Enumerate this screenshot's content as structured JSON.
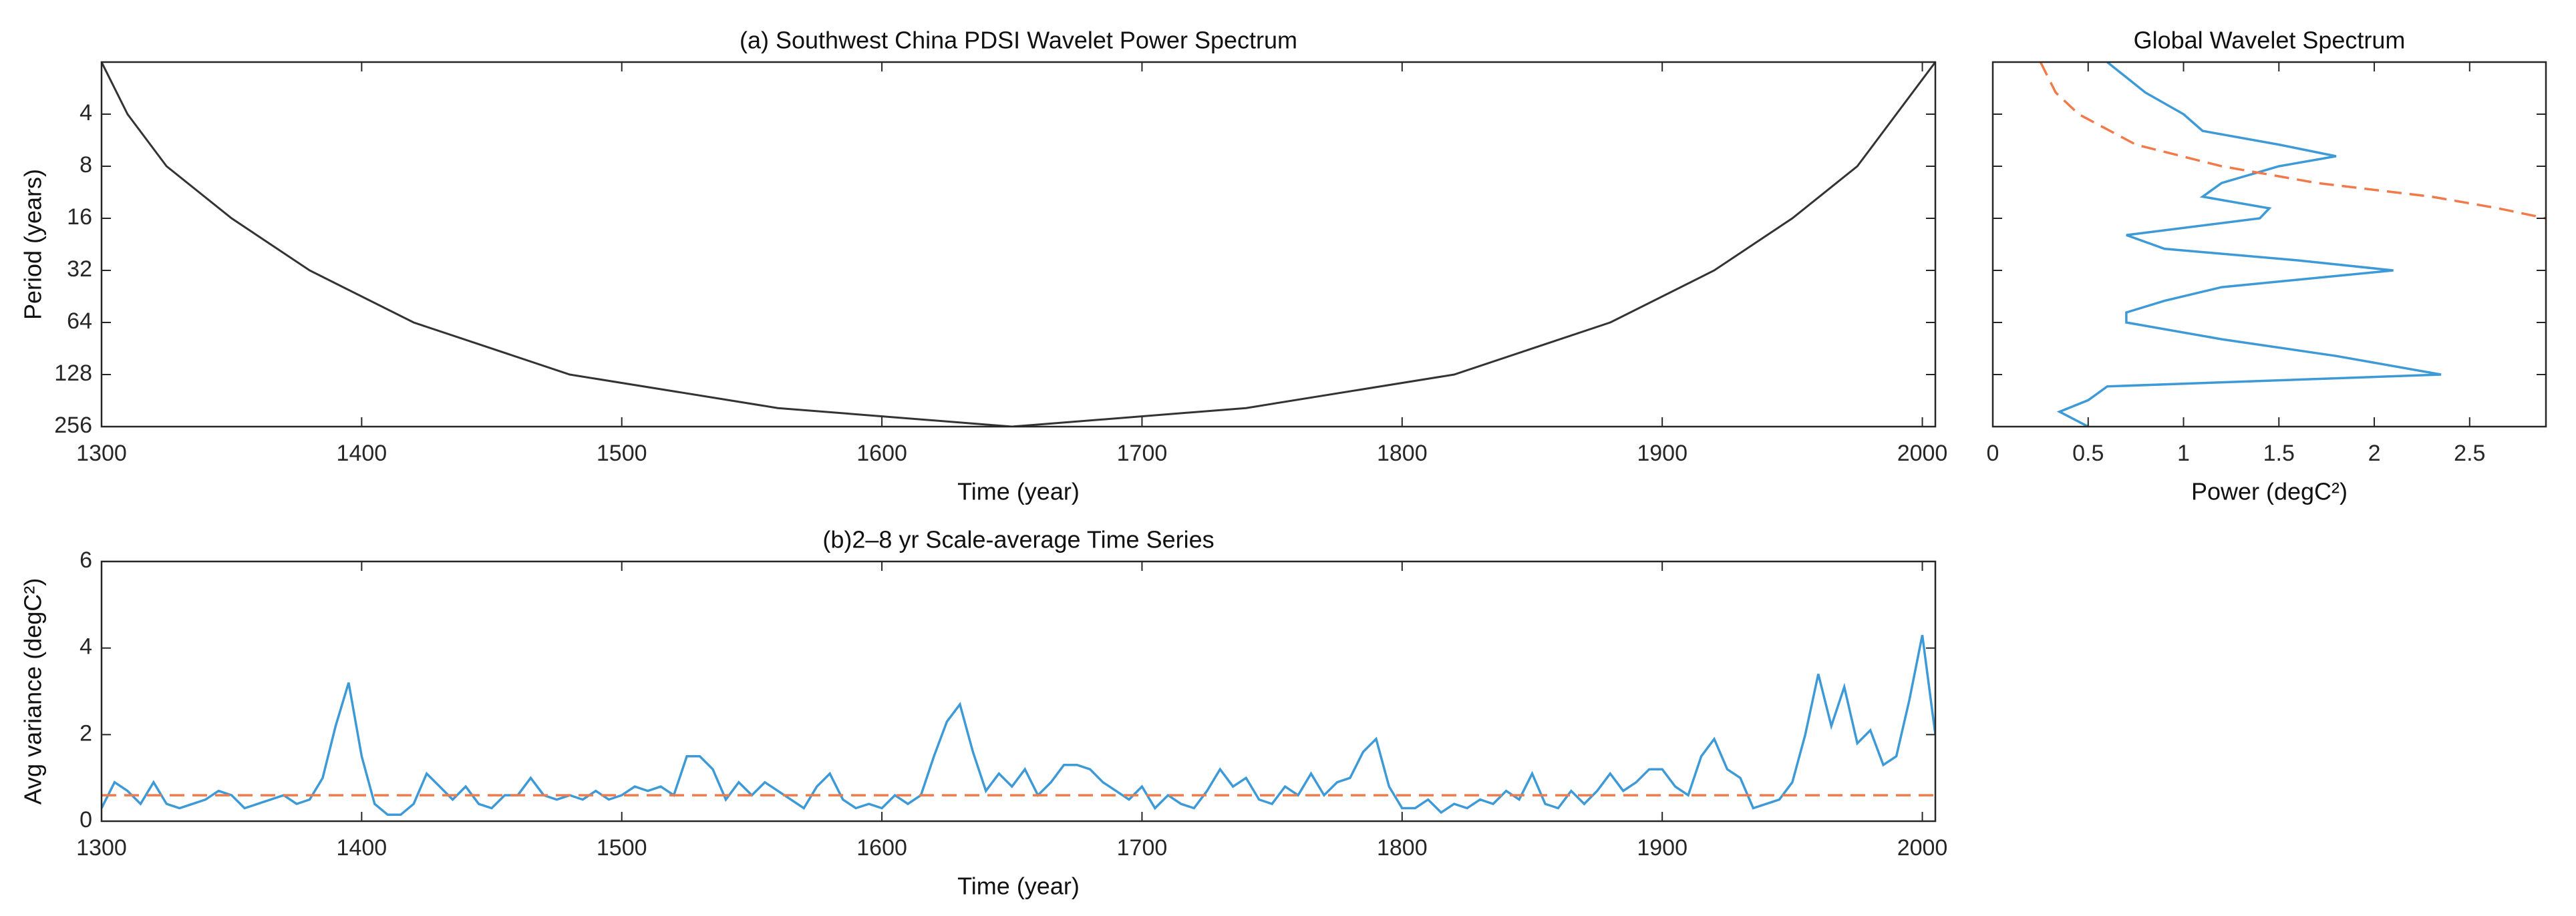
{
  "chart_data": [
    {
      "type": "contour",
      "title": "(a) Southwest China PDSI Wavelet Power Spectrum",
      "xlabel": "Time (year)",
      "ylabel": "Period (years)",
      "xlim": [
        1300,
        2005
      ],
      "xticks": [
        1300,
        1400,
        1500,
        1600,
        1700,
        1800,
        1900,
        2000
      ],
      "ylim": [
        2,
        256
      ],
      "yticks": [
        4,
        8,
        16,
        32,
        64,
        128,
        256
      ],
      "y_log": true,
      "y_reversed": true,
      "coi": {
        "color": "#333333",
        "x": [
          1300,
          1310,
          1325,
          1350,
          1380,
          1420,
          1480,
          1560,
          1650,
          1740,
          1820,
          1880,
          1920,
          1950,
          1975,
          1990,
          2005
        ],
        "values": [
          2,
          4,
          8,
          16,
          32,
          64,
          128,
          200,
          256,
          200,
          128,
          64,
          32,
          16,
          8,
          4,
          2
        ]
      }
    },
    {
      "type": "line",
      "orientation": "horizontal",
      "title": "Global Wavelet Spectrum",
      "xlabel": "Power (degC²)",
      "xlim": [
        0,
        2.9
      ],
      "xticks": [
        0,
        0.5,
        1,
        1.5,
        2,
        2.5
      ],
      "ylim": [
        2,
        256
      ],
      "yticks": [
        4,
        8,
        16,
        32,
        64,
        128,
        256
      ],
      "y_log": true,
      "y_reversed": true,
      "y_tick_labels": false,
      "series": [
        {
          "color": "#3d9ad6",
          "dash": false,
          "periods": [
            2,
            3,
            4,
            5,
            6,
            7,
            8,
            10,
            12,
            14,
            16,
            20,
            24,
            28,
            32,
            40,
            48,
            56,
            64,
            80,
            100,
            128,
            150,
            180,
            210,
            256
          ],
          "values": [
            0.6,
            0.8,
            1.0,
            1.1,
            1.5,
            1.8,
            1.5,
            1.2,
            1.1,
            1.45,
            1.4,
            0.7,
            0.9,
            1.6,
            2.1,
            1.2,
            0.9,
            0.7,
            0.7,
            1.2,
            1.8,
            2.35,
            0.6,
            0.5,
            0.35,
            0.5
          ]
        },
        {
          "color": "#f07a4a",
          "dash": true,
          "periods": [
            2,
            3,
            4,
            6,
            8,
            10,
            12,
            14,
            16
          ],
          "values": [
            0.25,
            0.33,
            0.45,
            0.75,
            1.2,
            1.7,
            2.3,
            2.65,
            2.9
          ]
        }
      ]
    },
    {
      "type": "line",
      "title": "(b)2–8 yr Scale-average Time Series",
      "xlabel": "Time (year)",
      "ylabel": "Avg variance (degC²)",
      "xlim": [
        1300,
        2005
      ],
      "xticks": [
        1300,
        1400,
        1500,
        1600,
        1700,
        1800,
        1900,
        2000
      ],
      "ylim": [
        0,
        6
      ],
      "yticks": [
        0,
        2,
        4,
        6
      ],
      "series": [
        {
          "color": "#3d9ad6",
          "dash": false,
          "x": [
            1300,
            1305,
            1310,
            1315,
            1320,
            1325,
            1330,
            1335,
            1340,
            1345,
            1350,
            1355,
            1360,
            1365,
            1370,
            1375,
            1380,
            1385,
            1390,
            1395,
            1400,
            1405,
            1410,
            1415,
            1420,
            1425,
            1430,
            1435,
            1440,
            1445,
            1450,
            1455,
            1460,
            1465,
            1470,
            1475,
            1480,
            1485,
            1490,
            1495,
            1500,
            1505,
            1510,
            1515,
            1520,
            1525,
            1530,
            1535,
            1540,
            1545,
            1550,
            1555,
            1560,
            1565,
            1570,
            1575,
            1580,
            1585,
            1590,
            1595,
            1600,
            1605,
            1610,
            1615,
            1620,
            1625,
            1630,
            1635,
            1640,
            1645,
            1650,
            1655,
            1660,
            1665,
            1670,
            1675,
            1680,
            1685,
            1690,
            1695,
            1700,
            1705,
            1710,
            1715,
            1720,
            1725,
            1730,
            1735,
            1740,
            1745,
            1750,
            1755,
            1760,
            1765,
            1770,
            1775,
            1780,
            1785,
            1790,
            1795,
            1800,
            1805,
            1810,
            1815,
            1820,
            1825,
            1830,
            1835,
            1840,
            1845,
            1850,
            1855,
            1860,
            1865,
            1870,
            1875,
            1880,
            1885,
            1890,
            1895,
            1900,
            1905,
            1910,
            1915,
            1920,
            1925,
            1930,
            1935,
            1940,
            1945,
            1950,
            1955,
            1960,
            1965,
            1970,
            1975,
            1980,
            1985,
            1990,
            1995,
            2000,
            2005
          ],
          "values": [
            0.3,
            0.9,
            0.7,
            0.4,
            0.9,
            0.4,
            0.3,
            0.4,
            0.5,
            0.7,
            0.6,
            0.3,
            0.4,
            0.5,
            0.6,
            0.4,
            0.5,
            1.0,
            2.2,
            3.2,
            1.5,
            0.4,
            0.15,
            0.15,
            0.4,
            1.1,
            0.8,
            0.5,
            0.8,
            0.4,
            0.3,
            0.6,
            0.6,
            1.0,
            0.6,
            0.5,
            0.6,
            0.5,
            0.7,
            0.5,
            0.6,
            0.8,
            0.7,
            0.8,
            0.6,
            1.5,
            1.5,
            1.2,
            0.5,
            0.9,
            0.6,
            0.9,
            0.7,
            0.5,
            0.3,
            0.8,
            1.1,
            0.5,
            0.3,
            0.4,
            0.3,
            0.6,
            0.4,
            0.6,
            1.5,
            2.3,
            2.7,
            1.6,
            0.7,
            1.1,
            0.8,
            1.2,
            0.6,
            0.9,
            1.3,
            1.3,
            1.2,
            0.9,
            0.7,
            0.5,
            0.8,
            0.3,
            0.6,
            0.4,
            0.3,
            0.7,
            1.2,
            0.8,
            1.0,
            0.5,
            0.4,
            0.8,
            0.6,
            1.1,
            0.6,
            0.9,
            1.0,
            1.6,
            1.9,
            0.8,
            0.3,
            0.3,
            0.5,
            0.2,
            0.4,
            0.3,
            0.5,
            0.4,
            0.7,
            0.5,
            1.1,
            0.4,
            0.3,
            0.7,
            0.4,
            0.7,
            1.1,
            0.7,
            0.9,
            1.2,
            1.2,
            0.8,
            0.6,
            1.5,
            1.9,
            1.2,
            1.0,
            0.3,
            0.4,
            0.5,
            0.9,
            2.0,
            3.4,
            2.2,
            3.1,
            1.8,
            2.1,
            1.3,
            1.5,
            2.8,
            4.3,
            2.0
          ]
        },
        {
          "color": "#f07a4a",
          "dash": true,
          "x": [
            1300,
            2005
          ],
          "values": [
            0.6,
            0.6
          ]
        }
      ]
    }
  ]
}
